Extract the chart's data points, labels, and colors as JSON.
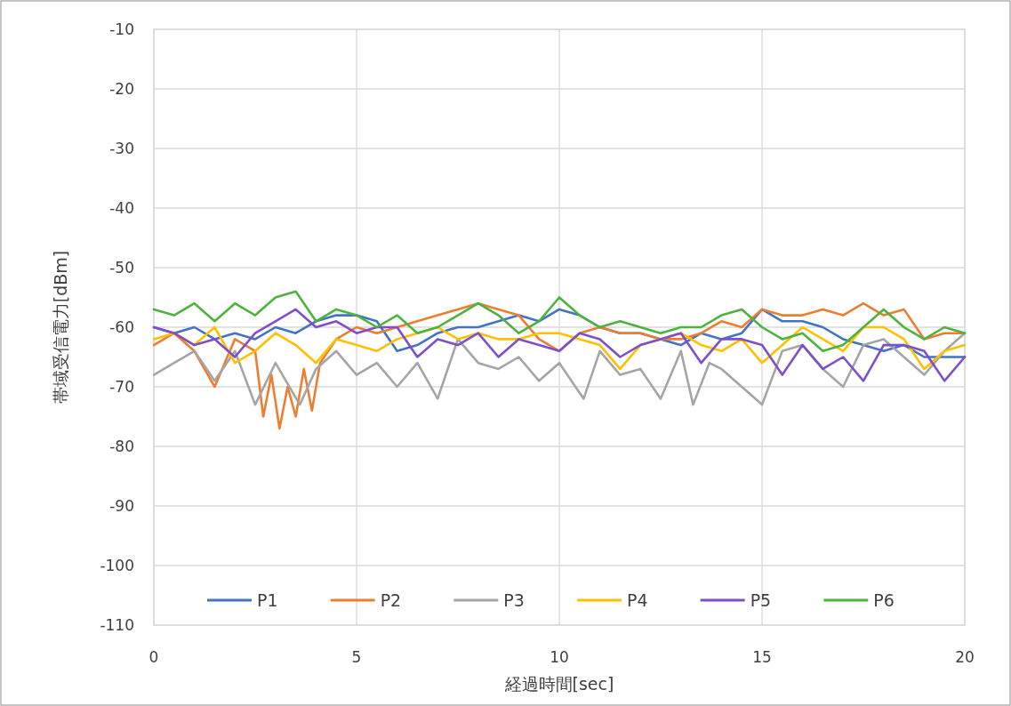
{
  "chart_data": {
    "type": "line",
    "xlabel": "経過時間[sec]",
    "ylabel": "帯域受信電力[dBm]",
    "xlim": [
      0,
      20
    ],
    "xticks": [
      0,
      5,
      10,
      15,
      20
    ],
    "ylim": [
      -110,
      -10
    ],
    "yticks": [
      -110,
      -100,
      -90,
      -80,
      -70,
      -60,
      -50,
      -40,
      -30,
      -20,
      -10
    ],
    "grid": true,
    "legend": "bottom",
    "line_style": "solid",
    "marker": "none",
    "series": [
      {
        "name": "P1",
        "color": "#4472c4",
        "x": [
          0,
          0.5,
          1,
          1.5,
          2,
          2.5,
          3,
          3.5,
          4,
          4.5,
          5,
          5.5,
          6,
          6.5,
          7,
          7.5,
          8,
          8.5,
          9,
          9.5,
          10,
          10.5,
          11,
          11.5,
          12,
          12.5,
          13,
          13.5,
          14,
          14.5,
          15,
          15.5,
          16,
          16.5,
          17,
          17.5,
          18,
          18.5,
          19,
          19.5,
          20
        ],
        "values": [
          -60,
          -61,
          -60,
          -62,
          -61,
          -62,
          -60,
          -61,
          -59,
          -58,
          -58,
          -59,
          -64,
          -63,
          -61,
          -60,
          -60,
          -59,
          -58,
          -59,
          -57,
          -58,
          -60,
          -61,
          -61,
          -62,
          -63,
          -61,
          -62,
          -61,
          -57,
          -59,
          -59,
          -60,
          -62,
          -63,
          -64,
          -63,
          -65,
          -65,
          -65
        ]
      },
      {
        "name": "P2",
        "color": "#ed7d31",
        "x": [
          0,
          0.5,
          1,
          1.5,
          2,
          2.5,
          2.7,
          2.9,
          3.1,
          3.3,
          3.5,
          3.7,
          3.9,
          4.1,
          4.5,
          5,
          5.5,
          6,
          6.5,
          7,
          7.5,
          8,
          8.5,
          9,
          9.5,
          10,
          10.5,
          11,
          11.5,
          12,
          12.5,
          13,
          13.5,
          14,
          14.5,
          15,
          15.5,
          16,
          16.5,
          17,
          17.5,
          18,
          18.5,
          19,
          19.5,
          20
        ],
        "values": [
          -63,
          -61,
          -64,
          -70,
          -62,
          -64,
          -75,
          -68,
          -77,
          -70,
          -75,
          -67,
          -74,
          -66,
          -62,
          -60,
          -61,
          -60,
          -59,
          -58,
          -57,
          -56,
          -57,
          -58,
          -62,
          -64,
          -61,
          -60,
          -61,
          -61,
          -62,
          -62,
          -61,
          -59,
          -60,
          -57,
          -58,
          -58,
          -57,
          -58,
          -56,
          -58,
          -57,
          -62,
          -61,
          -61
        ]
      },
      {
        "name": "P3",
        "color": "#a5a5a5",
        "x": [
          0,
          0.5,
          1,
          1.5,
          2,
          2.5,
          3,
          3.6,
          4,
          4.5,
          5,
          5.5,
          6,
          6.5,
          7,
          7.5,
          8,
          8.5,
          9,
          9.5,
          10,
          10.6,
          11,
          11.5,
          12,
          12.5,
          13,
          13.3,
          13.7,
          14,
          14.5,
          15,
          15.5,
          16,
          16.5,
          17,
          17.5,
          18,
          18.5,
          19,
          19.5,
          20
        ],
        "values": [
          -68,
          -66,
          -64,
          -69,
          -64,
          -73,
          -66,
          -73,
          -67,
          -64,
          -68,
          -66,
          -70,
          -66,
          -72,
          -62,
          -66,
          -67,
          -65,
          -69,
          -66,
          -72,
          -64,
          -68,
          -67,
          -72,
          -64,
          -73,
          -66,
          -67,
          -70,
          -73,
          -64,
          -63,
          -67,
          -70,
          -63,
          -62,
          -65,
          -68,
          -64,
          -61
        ]
      },
      {
        "name": "P4",
        "color": "#ffc000",
        "x": [
          0,
          0.5,
          1,
          1.5,
          2,
          2.5,
          3,
          3.5,
          4,
          4.5,
          5,
          5.5,
          6,
          6.5,
          7,
          7.5,
          8,
          8.5,
          9,
          9.5,
          10,
          10.5,
          11,
          11.5,
          12,
          12.5,
          13,
          13.5,
          14,
          14.5,
          15,
          15.5,
          16,
          16.5,
          17,
          17.5,
          18,
          18.5,
          19,
          19.5,
          20
        ],
        "values": [
          -62,
          -61,
          -63,
          -60,
          -66,
          -64,
          -61,
          -63,
          -66,
          -62,
          -63,
          -64,
          -62,
          -61,
          -60,
          -62,
          -61,
          -62,
          -62,
          -61,
          -61,
          -62,
          -63,
          -67,
          -63,
          -62,
          -61,
          -63,
          -64,
          -62,
          -66,
          -63,
          -60,
          -62,
          -64,
          -60,
          -60,
          -62,
          -67,
          -64,
          -63
        ]
      },
      {
        "name": "P5",
        "color": "#7f4fc9",
        "x": [
          0,
          0.5,
          1,
          1.5,
          2,
          2.5,
          3,
          3.5,
          4,
          4.5,
          5,
          5.5,
          6,
          6.5,
          7,
          7.5,
          8,
          8.5,
          9,
          9.5,
          10,
          10.5,
          11,
          11.5,
          12,
          12.5,
          13,
          13.5,
          14,
          14.5,
          15,
          15.5,
          16,
          16.5,
          17,
          17.5,
          18,
          18.5,
          19,
          19.5,
          20
        ],
        "values": [
          -60,
          -61,
          -63,
          -62,
          -65,
          -61,
          -59,
          -57,
          -60,
          -59,
          -61,
          -60,
          -60,
          -65,
          -62,
          -63,
          -61,
          -65,
          -62,
          -63,
          -64,
          -61,
          -62,
          -65,
          -63,
          -62,
          -61,
          -66,
          -62,
          -62,
          -63,
          -68,
          -63,
          -67,
          -65,
          -69,
          -63,
          -63,
          -64,
          -69,
          -65
        ]
      },
      {
        "name": "P6",
        "color": "#4db33d",
        "x": [
          0,
          0.5,
          1,
          1.5,
          2,
          2.5,
          3,
          3.5,
          4,
          4.5,
          5,
          5.5,
          6,
          6.5,
          7,
          7.5,
          8,
          8.5,
          9,
          9.5,
          10,
          10.5,
          11,
          11.5,
          12,
          12.5,
          13,
          13.5,
          14,
          14.5,
          15,
          15.5,
          16,
          16.5,
          17,
          17.5,
          18,
          18.5,
          19,
          19.5,
          20
        ],
        "values": [
          -57,
          -58,
          -56,
          -59,
          -56,
          -58,
          -55,
          -54,
          -59,
          -57,
          -58,
          -60,
          -58,
          -61,
          -60,
          -58,
          -56,
          -58,
          -61,
          -59,
          -55,
          -58,
          -60,
          -59,
          -60,
          -61,
          -60,
          -60,
          -58,
          -57,
          -60,
          -62,
          -61,
          -64,
          -63,
          -60,
          -57,
          -60,
          -62,
          -60,
          -61
        ]
      }
    ]
  }
}
